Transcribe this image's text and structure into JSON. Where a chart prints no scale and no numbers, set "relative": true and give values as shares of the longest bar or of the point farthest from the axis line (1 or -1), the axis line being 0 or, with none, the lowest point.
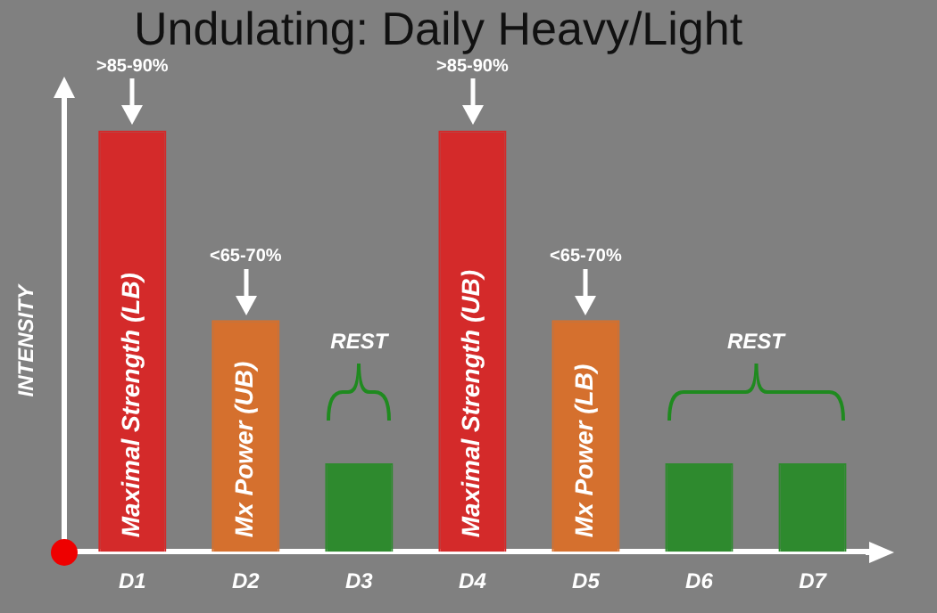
{
  "chart_data": {
    "type": "bar",
    "title": "Undulating: Daily Heavy/Light",
    "ylabel": "INTENSITY",
    "relative": true,
    "categories": [
      "D1",
      "D2",
      "D3",
      "D4",
      "D5",
      "D6",
      "D7"
    ],
    "values": [
      1,
      0.55,
      0.21,
      1,
      0.55,
      0.21,
      0.21
    ],
    "colors": [
      "#d42a2a",
      "#d5702e",
      "#2e8a2e",
      "#d42a2a",
      "#d5702e",
      "#2e8a2e",
      "#2e8a2e"
    ],
    "annotations": [
      ">85-90%",
      "<65-70%",
      ">85-90%",
      "<65-70%",
      "Maximal Strength (LB)",
      "Mx Power (UB)",
      "Maximal Strength (UB)",
      "Mx Power (LB)",
      "REST",
      "REST"
    ],
    "grid": false,
    "legend": false
  }
}
